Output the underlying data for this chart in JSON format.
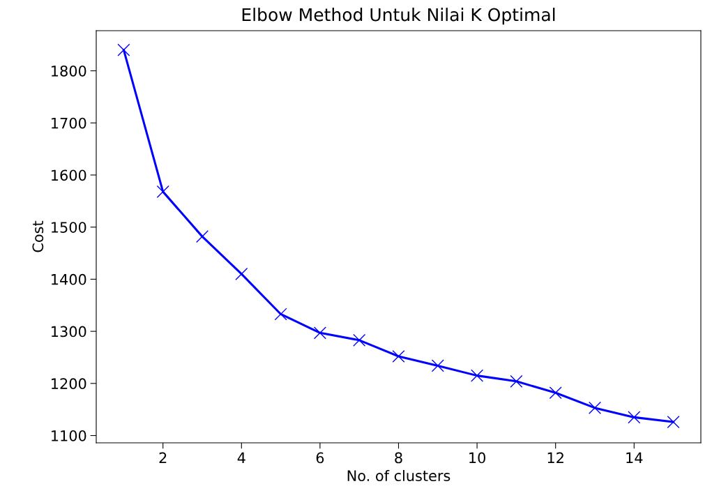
{
  "chart_data": {
    "type": "line",
    "title": "Elbow Method Untuk Nilai K Optimal",
    "xlabel": "No. of clusters",
    "ylabel": "Cost",
    "x": [
      1,
      2,
      3,
      4,
      5,
      6,
      7,
      8,
      9,
      10,
      11,
      12,
      13,
      14,
      15
    ],
    "series": [
      {
        "color": "#0000ff",
        "values": [
          1840,
          1568,
          1482,
          1410,
          1333,
          1297,
          1283,
          1252,
          1234,
          1215,
          1204,
          1182,
          1153,
          1135,
          1126
        ]
      }
    ],
    "marker": "cross",
    "line_style": "solid",
    "grid": false,
    "legend": false,
    "xlim": [
      0.3,
      15.7
    ],
    "xticks": [
      2,
      4,
      6,
      8,
      10,
      12,
      14
    ],
    "ylim": [
      1086,
      1877
    ],
    "yticks": [
      1100,
      1200,
      1300,
      1400,
      1500,
      1600,
      1700,
      1800
    ]
  }
}
